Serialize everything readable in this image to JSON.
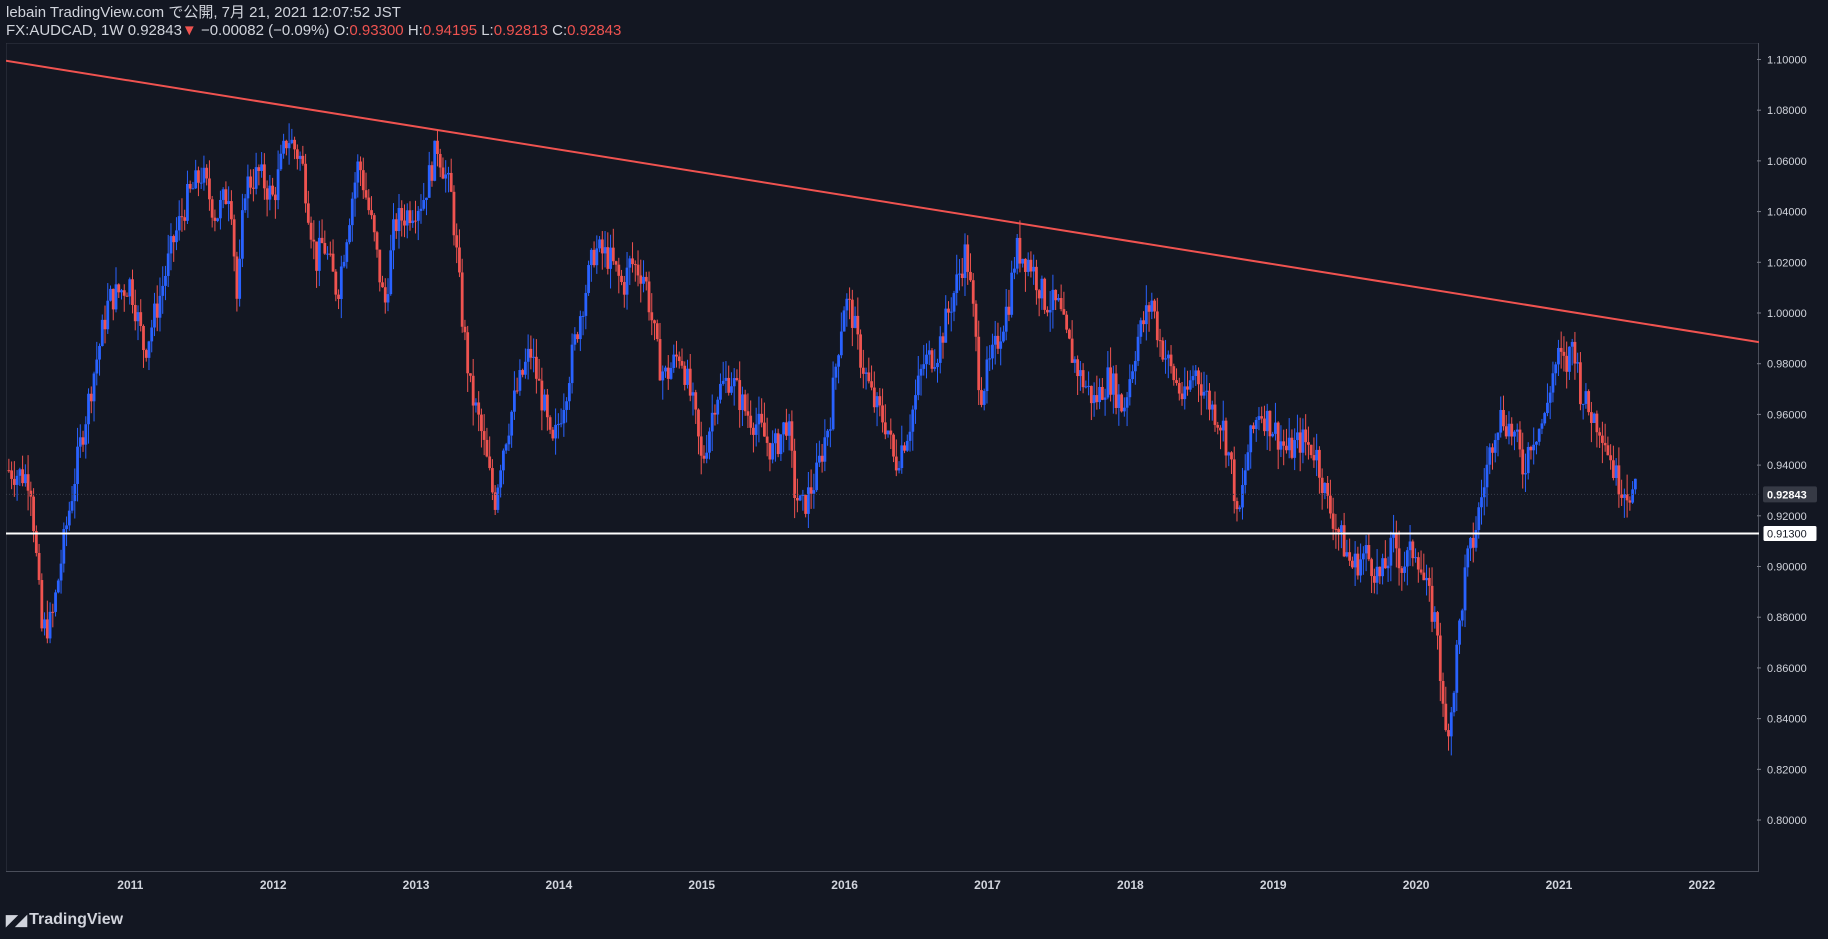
{
  "header": {
    "publisher": "lebain TradingView.com で公開, 7月 21, 2021 12:07:52 JST",
    "symbol": "FX:AUDCAD, 1W",
    "last": "0.92843",
    "change_arrow": "▼",
    "change": "−0.00082 (−0.09%)",
    "o_label": "O:",
    "o": "0.93300",
    "h_label": "H:",
    "h": "0.94195",
    "l_label": "L:",
    "l": "0.92813",
    "c_label": "C:",
    "c": "0.92843"
  },
  "footer": {
    "logo_text": "TradingView",
    "logo_icon": "tradingview-logo-icon"
  },
  "colors": {
    "up": "#2962ff",
    "down": "#ef5350",
    "trendline": "#f05350",
    "support": "#ffffff",
    "bg": "#131722",
    "axis_text": "#d1d4dc"
  },
  "chart_data": {
    "type": "candlestick",
    "symbol": "FX:AUDCAD",
    "interval": "1W",
    "x_ticks": [
      "2011",
      "2012",
      "2013",
      "2014",
      "2015",
      "2016",
      "2017",
      "2018",
      "2019",
      "2020",
      "2021",
      "2022"
    ],
    "x_range": [
      2010.13,
      2022.4
    ],
    "y_ticks": [
      "1.10000",
      "1.08000",
      "1.06000",
      "1.04000",
      "1.02000",
      "1.00000",
      "0.98000",
      "0.96000",
      "0.94000",
      "0.92000",
      "0.90000",
      "0.88000",
      "0.86000",
      "0.84000",
      "0.82000",
      "0.80000"
    ],
    "y_range": [
      0.7795,
      1.1065
    ],
    "price_labels": [
      {
        "value": 0.92843,
        "text": "0.92843",
        "style": "last"
      },
      {
        "value": 0.913,
        "text": "0.91300",
        "style": "support"
      }
    ],
    "trendline": {
      "points": [
        [
          2010.13,
          1.0995
        ],
        [
          2022.4,
          0.9885
        ]
      ]
    },
    "support_line": {
      "value": 0.913
    },
    "path": [
      [
        2010.15,
        0.938
      ],
      [
        2010.3,
        0.935
      ],
      [
        2010.38,
        0.875
      ],
      [
        2010.45,
        0.878
      ],
      [
        2010.55,
        0.915
      ],
      [
        2010.65,
        0.948
      ],
      [
        2010.75,
        0.978
      ],
      [
        2010.85,
        1.005
      ],
      [
        2011.0,
        1.012
      ],
      [
        2011.1,
        0.985
      ],
      [
        2011.2,
        1.005
      ],
      [
        2011.3,
        1.028
      ],
      [
        2011.4,
        1.045
      ],
      [
        2011.5,
        1.055
      ],
      [
        2011.6,
        1.038
      ],
      [
        2011.7,
        1.05
      ],
      [
        2011.75,
        1.002
      ],
      [
        2011.8,
        1.05
      ],
      [
        2011.9,
        1.055
      ],
      [
        2012.0,
        1.045
      ],
      [
        2012.1,
        1.07
      ],
      [
        2012.2,
        1.06
      ],
      [
        2012.3,
        1.02
      ],
      [
        2012.35,
        1.028
      ],
      [
        2012.45,
        1.008
      ],
      [
        2012.55,
        1.045
      ],
      [
        2012.6,
        1.06
      ],
      [
        2012.7,
        1.032
      ],
      [
        2012.78,
        1.002
      ],
      [
        2012.85,
        1.035
      ],
      [
        2012.95,
        1.04
      ],
      [
        2013.05,
        1.045
      ],
      [
        2013.15,
        1.066
      ],
      [
        2013.25,
        1.045
      ],
      [
        2013.32,
        1.0
      ],
      [
        2013.38,
        0.97
      ],
      [
        2013.45,
        0.955
      ],
      [
        2013.55,
        0.925
      ],
      [
        2013.6,
        0.945
      ],
      [
        2013.7,
        0.968
      ],
      [
        2013.8,
        0.985
      ],
      [
        2013.9,
        0.962
      ],
      [
        2013.95,
        0.945
      ],
      [
        2014.05,
        0.97
      ],
      [
        2014.15,
        1.0
      ],
      [
        2014.25,
        1.025
      ],
      [
        2014.35,
        1.022
      ],
      [
        2014.45,
        1.01
      ],
      [
        2014.5,
        1.02
      ],
      [
        2014.6,
        1.015
      ],
      [
        2014.7,
        0.98
      ],
      [
        2014.75,
        0.975
      ],
      [
        2014.85,
        0.985
      ],
      [
        2014.95,
        0.96
      ],
      [
        2015.0,
        0.94
      ],
      [
        2015.1,
        0.968
      ],
      [
        2015.2,
        0.975
      ],
      [
        2015.3,
        0.962
      ],
      [
        2015.4,
        0.955
      ],
      [
        2015.5,
        0.945
      ],
      [
        2015.6,
        0.958
      ],
      [
        2015.65,
        0.93
      ],
      [
        2015.7,
        0.922
      ],
      [
        2015.8,
        0.935
      ],
      [
        2015.9,
        0.96
      ],
      [
        2015.95,
        0.985
      ],
      [
        2016.0,
        1.005
      ],
      [
        2016.05,
        1.0
      ],
      [
        2016.1,
        0.985
      ],
      [
        2016.2,
        0.965
      ],
      [
        2016.3,
        0.955
      ],
      [
        2016.35,
        0.94
      ],
      [
        2016.45,
        0.955
      ],
      [
        2016.55,
        0.98
      ],
      [
        2016.65,
        0.985
      ],
      [
        2016.75,
        1.005
      ],
      [
        2016.85,
        1.025
      ],
      [
        2016.9,
        1.0
      ],
      [
        2016.95,
        0.968
      ],
      [
        2017.05,
        0.985
      ],
      [
        2017.15,
        1.005
      ],
      [
        2017.2,
        1.025
      ],
      [
        2017.3,
        1.02
      ],
      [
        2017.4,
        1.005
      ],
      [
        2017.5,
        1.002
      ],
      [
        2017.55,
        0.99
      ],
      [
        2017.65,
        0.975
      ],
      [
        2017.75,
        0.965
      ],
      [
        2017.85,
        0.975
      ],
      [
        2017.95,
        0.962
      ],
      [
        2018.05,
        0.99
      ],
      [
        2018.15,
        1.005
      ],
      [
        2018.2,
        0.99
      ],
      [
        2018.3,
        0.975
      ],
      [
        2018.38,
        0.965
      ],
      [
        2018.45,
        0.978
      ],
      [
        2018.55,
        0.965
      ],
      [
        2018.65,
        0.955
      ],
      [
        2018.72,
        0.935
      ],
      [
        2018.75,
        0.915
      ],
      [
        2018.82,
        0.945
      ],
      [
        2018.9,
        0.962
      ],
      [
        2019.0,
        0.955
      ],
      [
        2019.1,
        0.945
      ],
      [
        2019.2,
        0.95
      ],
      [
        2019.3,
        0.945
      ],
      [
        2019.38,
        0.925
      ],
      [
        2019.45,
        0.915
      ],
      [
        2019.55,
        0.9
      ],
      [
        2019.65,
        0.905
      ],
      [
        2019.75,
        0.895
      ],
      [
        2019.85,
        0.91
      ],
      [
        2019.9,
        0.9
      ],
      [
        2020.0,
        0.908
      ],
      [
        2020.05,
        0.895
      ],
      [
        2020.1,
        0.885
      ],
      [
        2020.15,
        0.875
      ],
      [
        2020.2,
        0.832
      ],
      [
        2020.25,
        0.845
      ],
      [
        2020.3,
        0.875
      ],
      [
        2020.35,
        0.9
      ],
      [
        2020.4,
        0.91
      ],
      [
        2020.45,
        0.925
      ],
      [
        2020.5,
        0.94
      ],
      [
        2020.55,
        0.955
      ],
      [
        2020.6,
        0.96
      ],
      [
        2020.7,
        0.95
      ],
      [
        2020.75,
        0.938
      ],
      [
        2020.8,
        0.95
      ],
      [
        2020.9,
        0.958
      ],
      [
        2020.95,
        0.975
      ],
      [
        2021.0,
        0.983
      ],
      [
        2021.05,
        0.978
      ],
      [
        2021.1,
        0.99
      ],
      [
        2021.15,
        0.97
      ],
      [
        2021.2,
        0.962
      ],
      [
        2021.3,
        0.955
      ],
      [
        2021.35,
        0.945
      ],
      [
        2021.4,
        0.935
      ],
      [
        2021.48,
        0.93
      ],
      [
        2021.55,
        0.9284
      ]
    ]
  }
}
